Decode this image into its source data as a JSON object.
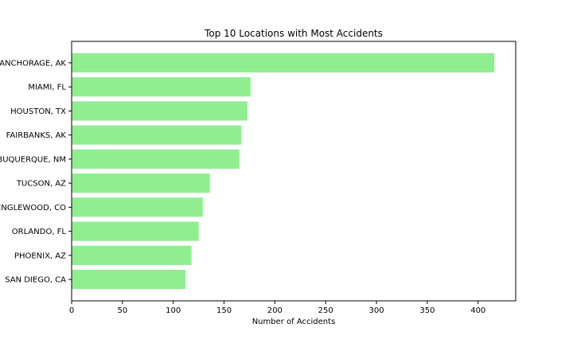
{
  "chart_data": {
    "type": "bar",
    "orientation": "horizontal",
    "title": "Top 10 Locations with Most Accidents",
    "xlabel": "Number of Accidents",
    "ylabel": "",
    "categories": [
      "ANCHORAGE, AK",
      "MIAMI, FL",
      "HOUSTON, TX",
      "FAIRBANKS, AK",
      "ALBUQUERQUE, NM",
      "TUCSON, AZ",
      "ENGLEWOOD, CO",
      "ORLANDO, FL",
      "PHOENIX, AZ",
      "SAN DIEGO, CA"
    ],
    "values": [
      416,
      176,
      173,
      167,
      165,
      136,
      129,
      125,
      118,
      112
    ],
    "xlim": [
      0,
      437
    ],
    "xticks": [
      0,
      50,
      100,
      150,
      200,
      250,
      300,
      350,
      400
    ],
    "bar_color": "#90ee90",
    "grid": false,
    "legend": "none"
  }
}
